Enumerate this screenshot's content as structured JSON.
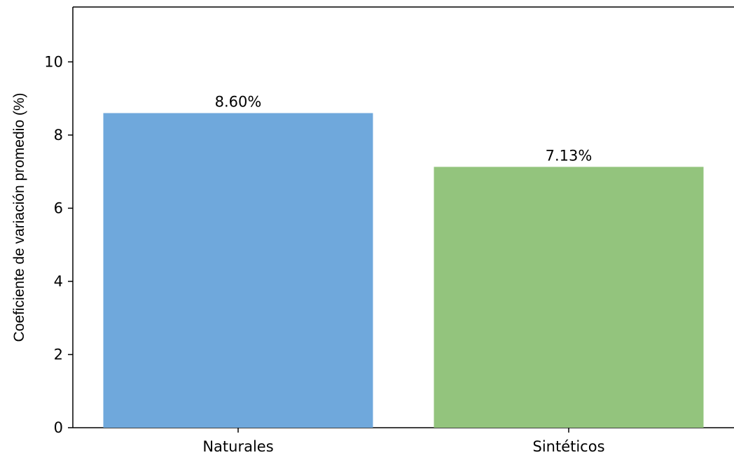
{
  "chart_data": {
    "type": "bar",
    "categories": [
      "Naturales",
      "Sintéticos"
    ],
    "values": [
      8.6,
      7.13
    ],
    "data_labels": [
      "8.60%",
      "7.13%"
    ],
    "colors": [
      "#6fa8dc",
      "#93c47d"
    ],
    "title": "",
    "xlabel": "",
    "ylabel": "Coeficiente de variación promedio (%)",
    "ylim": [
      0,
      11.5
    ],
    "yticks": [
      0,
      2,
      4,
      6,
      8,
      10
    ],
    "grid": false,
    "legend": "none"
  }
}
